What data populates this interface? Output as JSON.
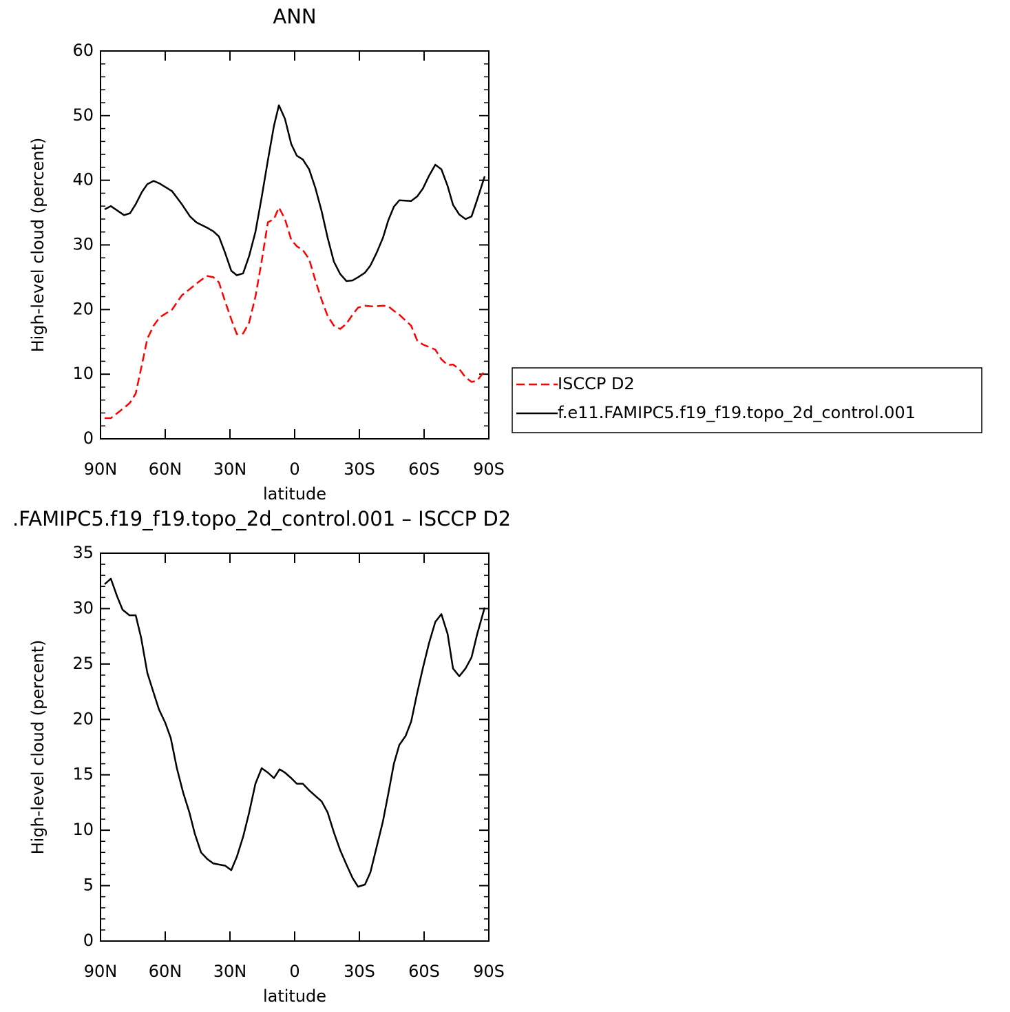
{
  "chart_data": [
    {
      "type": "line",
      "title": "ANN",
      "xlabel": "latitude",
      "ylabel": "High-level cloud (percent)",
      "x": [
        88.1,
        85.2,
        79.1,
        76.3,
        73.7,
        70.8,
        68.3,
        65.4,
        62.6,
        56.8,
        52.3,
        48.5,
        45.6,
        40.8,
        37.7,
        35.1,
        32.5,
        29.4,
        26.8,
        23.9,
        21.1,
        18.2,
        15.3,
        12.4,
        9.6,
        7.3,
        4.5,
        1.6,
        -1.0,
        -3.8,
        -6.7,
        -9.6,
        -12.5,
        -15.3,
        -18.2,
        -21.1,
        -24.0,
        -26.8,
        -29.4,
        -32.6,
        -35.1,
        -38.0,
        -40.9,
        -43.4,
        -46.0,
        -48.5,
        -54.0,
        -56.8,
        -59.4,
        -62.3,
        -65.2,
        -68.0,
        -70.9,
        -73.4,
        -76.3,
        -79.2,
        -82.0,
        -84.6,
        -88.1
      ],
      "series": [
        {
          "name": "ISCCP D2",
          "color": "#ff0000",
          "linestyle": "dashed",
          "values": [
            3.2,
            3.2,
            4.8,
            5.6,
            7.0,
            11.5,
            15.5,
            17.5,
            18.8,
            20.0,
            22.2,
            23.2,
            24.0,
            25.2,
            25.0,
            24.2,
            21.5,
            18.5,
            16.2,
            16.3,
            18.0,
            22.0,
            27.5,
            33.5,
            34.0,
            35.8,
            34.0,
            30.8,
            29.8,
            29.2,
            27.8,
            24.5,
            21.5,
            19.0,
            17.5,
            17.0,
            17.8,
            19.2,
            20.3,
            20.6,
            20.5,
            20.5,
            20.6,
            20.5,
            19.8,
            19.2,
            17.5,
            15.2,
            14.6,
            14.2,
            13.8,
            12.3,
            11.4,
            11.5,
            10.8,
            9.5,
            8.8,
            9.0,
            10.5
          ]
        },
        {
          "name": "f.e11.FAMIPC5.f19_f19.topo_2d_control.001",
          "color": "#000000",
          "linestyle": "solid",
          "values": [
            35.5,
            36.0,
            34.6,
            34.9,
            36.3,
            38.2,
            39.4,
            39.9,
            39.5,
            38.3,
            36.3,
            34.4,
            33.5,
            32.7,
            32.1,
            31.3,
            29.0,
            26.0,
            25.3,
            25.6,
            28.3,
            32.0,
            37.4,
            43.1,
            48.4,
            51.6,
            49.5,
            45.6,
            43.8,
            43.2,
            41.7,
            38.8,
            35.2,
            31.1,
            27.4,
            25.5,
            24.4,
            24.5,
            25.0,
            25.7,
            26.8,
            28.8,
            31.1,
            33.8,
            35.9,
            36.9,
            36.8,
            37.5,
            38.7,
            40.7,
            42.4,
            41.7,
            39.1,
            36.2,
            34.7,
            34.0,
            34.4,
            37.0,
            40.6
          ]
        }
      ],
      "xlim": [
        90,
        -90
      ],
      "xticks": [
        {
          "value": 90,
          "label": "90N"
        },
        {
          "value": 60,
          "label": "60N"
        },
        {
          "value": 30,
          "label": "30N"
        },
        0,
        {
          "value": -30,
          "label": "30S"
        },
        {
          "value": -60,
          "label": "60S"
        },
        {
          "value": -90,
          "label": "90S"
        }
      ],
      "ylim": [
        0,
        60
      ],
      "yticks": [
        0,
        10,
        20,
        30,
        40,
        50,
        60
      ],
      "yminorticks": [
        2,
        4,
        6,
        8,
        12,
        14,
        16,
        18,
        22,
        24,
        26,
        28,
        32,
        34,
        36,
        38,
        42,
        44,
        46,
        48,
        52,
        54,
        56,
        58
      ],
      "legend": "outside-right",
      "grid": false
    },
    {
      "type": "line",
      "title": ".FAMIPC5.f19_f19.topo_2d_control.001 – ISCCP D2",
      "xlabel": "latitude",
      "ylabel": "High-level cloud (percent)",
      "x": [
        88.1,
        85.2,
        82.3,
        79.8,
        76.6,
        73.7,
        71.2,
        68.3,
        65.7,
        62.9,
        60.0,
        57.4,
        54.6,
        51.7,
        48.8,
        46.3,
        43.4,
        40.5,
        37.7,
        32.2,
        29.4,
        26.8,
        23.9,
        21.1,
        18.2,
        15.3,
        12.4,
        9.6,
        7.0,
        4.5,
        1.6,
        -1.0,
        -3.8,
        -6.7,
        -9.6,
        -12.5,
        -15.3,
        -18.2,
        -21.1,
        -24.0,
        -26.8,
        -29.4,
        -32.6,
        -35.1,
        -38.0,
        -40.9,
        -43.4,
        -46.0,
        -48.5,
        -51.4,
        -54.0,
        -56.8,
        -59.4,
        -62.3,
        -65.2,
        -68.0,
        -70.9,
        -73.4,
        -76.3,
        -79.2,
        -82.0,
        -84.6,
        -88.1
      ],
      "series": [
        {
          "color": "#000000",
          "linestyle": "solid",
          "values": [
            32.2,
            32.7,
            31.1,
            29.9,
            29.4,
            29.4,
            27.4,
            24.2,
            22.6,
            20.9,
            19.7,
            18.3,
            15.6,
            13.4,
            11.6,
            9.7,
            8.0,
            7.4,
            7.0,
            6.8,
            6.4,
            7.6,
            9.4,
            11.6,
            14.2,
            15.6,
            15.2,
            14.7,
            15.5,
            15.2,
            14.7,
            14.2,
            14.2,
            13.6,
            13.1,
            12.6,
            11.6,
            9.8,
            8.2,
            6.9,
            5.7,
            4.9,
            5.1,
            6.2,
            8.5,
            10.8,
            13.3,
            16.0,
            17.7,
            18.5,
            19.8,
            22.4,
            24.6,
            26.9,
            28.8,
            29.5,
            27.7,
            24.6,
            23.9,
            24.6,
            25.6,
            27.7,
            30.1
          ]
        }
      ],
      "xlim": [
        90,
        -90
      ],
      "xticks": [
        {
          "value": 90,
          "label": "90N"
        },
        {
          "value": 60,
          "label": "60N"
        },
        {
          "value": 30,
          "label": "30N"
        },
        0,
        {
          "value": -30,
          "label": "30S"
        },
        {
          "value": -60,
          "label": "60S"
        },
        {
          "value": -90,
          "label": "90S"
        }
      ],
      "ylim": [
        0,
        35
      ],
      "yticks": [
        0,
        5,
        10,
        15,
        20,
        25,
        30,
        35
      ],
      "yminorticks": [
        1,
        2,
        3,
        4,
        6,
        7,
        8,
        9,
        11,
        12,
        13,
        14,
        16,
        17,
        18,
        19,
        21,
        22,
        23,
        24,
        26,
        27,
        28,
        29,
        31,
        32,
        33,
        34
      ],
      "grid": false
    }
  ]
}
